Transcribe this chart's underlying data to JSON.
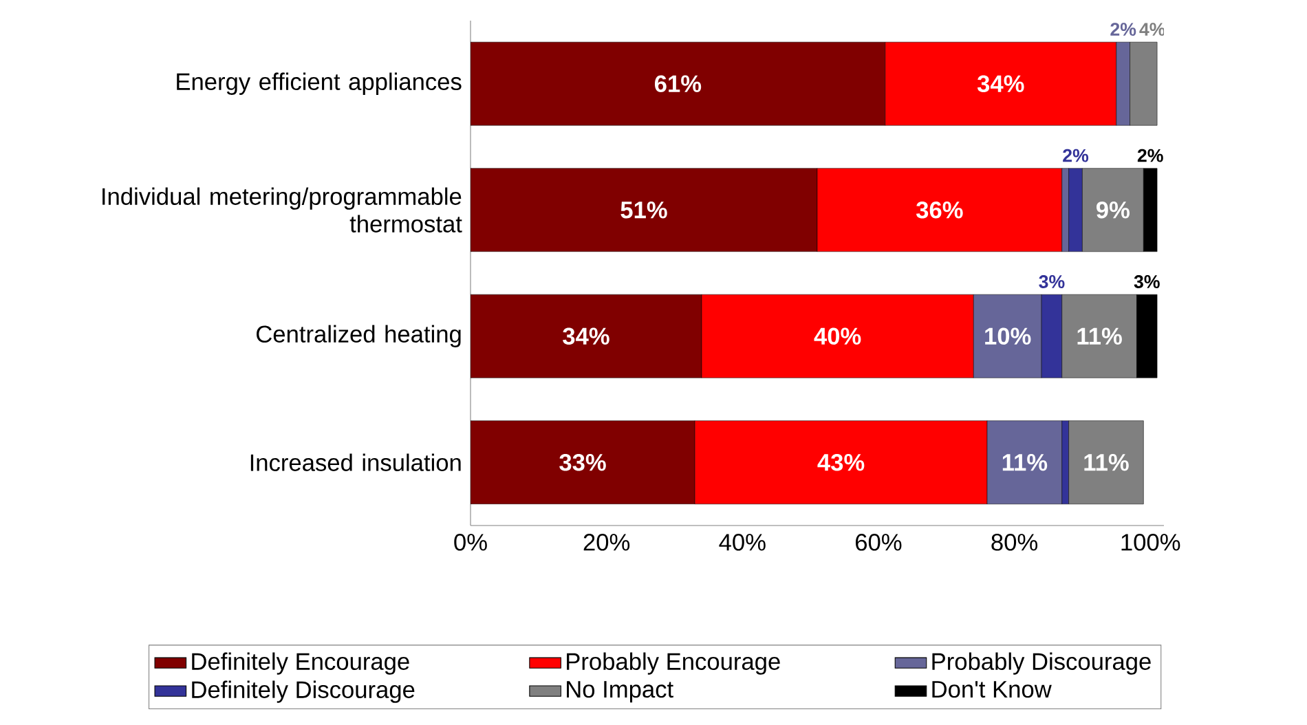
{
  "chart_data": {
    "type": "bar",
    "orientation": "horizontal",
    "stacked": true,
    "categories": [
      "Energy efficient appliances",
      "Individual metering/programmable thermostat",
      "Centralized heating",
      "Increased insulation"
    ],
    "series": [
      {
        "name": "Definitely Encourage",
        "color": "#800000",
        "values": [
          61,
          51,
          34,
          33
        ],
        "value_labels": [
          "61%",
          "51%",
          "34%",
          "33%"
        ]
      },
      {
        "name": "Probably Encourage",
        "color": "#ff0000",
        "values": [
          34,
          36,
          40,
          43
        ],
        "value_labels": [
          "34%",
          "36%",
          "40%",
          "43%"
        ]
      },
      {
        "name": "Probably Discourage",
        "color": "#666699",
        "values": [
          2,
          1,
          10,
          11
        ],
        "value_labels": [
          "2%",
          null,
          "10%",
          "11%"
        ]
      },
      {
        "name": "Definitely Discourage",
        "color": "#333399",
        "values": [
          null,
          2,
          3,
          1
        ],
        "value_labels": [
          null,
          "2%",
          "3%",
          null
        ]
      },
      {
        "name": "No Impact",
        "color": "#808080",
        "values": [
          4,
          9,
          11,
          11
        ],
        "value_labels": [
          "4%",
          "9%",
          "11%",
          "11%"
        ]
      },
      {
        "name": "Don't Know",
        "color": "#000000",
        "values": [
          null,
          2,
          3,
          null
        ],
        "value_labels": [
          null,
          "2%",
          "3%",
          null
        ]
      }
    ],
    "xlim": [
      0,
      102
    ],
    "xticks": [
      {
        "value": 0,
        "label": "0%"
      },
      {
        "value": 20,
        "label": "20%"
      },
      {
        "value": 40,
        "label": "40%"
      },
      {
        "value": 60,
        "label": "60%"
      },
      {
        "value": 80,
        "label": "80%"
      },
      {
        "value": 100,
        "label": "100%"
      }
    ],
    "legend": "bottom"
  }
}
